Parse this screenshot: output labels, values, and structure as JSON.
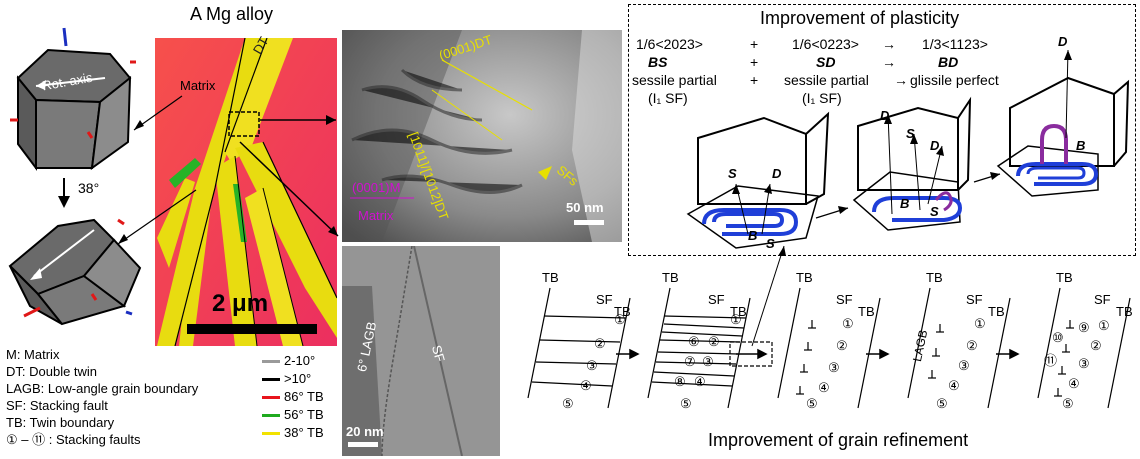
{
  "top_title": "A Mg alloy",
  "left_panel": {
    "rot_axis_label": "Rot. axis",
    "angle_label": "38°",
    "matrix_label": "Matrix"
  },
  "ebsd": {
    "dt_label": "DT",
    "scale_label": "2 μm"
  },
  "tem_top": {
    "plane_dt": "(0001)DT",
    "direction_dt": "[1011]/[1012]DT",
    "sfs_label": "SFs",
    "plane_m": "(0001)M",
    "matrix_label": "Matrix",
    "scale_label": "50 nm"
  },
  "tem_bottom": {
    "lagb_label": "6° LAGB",
    "sf_label": "SF",
    "scale_label": "20 nm"
  },
  "legend_abbrev": [
    "M: Matrix",
    "DT: Double twin",
    "LAGB: Low-angle grain boundary",
    "SF: Stacking fault",
    "TB: Twin boundary",
    "① – ⑪ : Stacking faults"
  ],
  "legend_boundaries": [
    {
      "label": "2-10°",
      "color": "#9a9a9a"
    },
    {
      "label": ">10°",
      "color": "#000000"
    },
    {
      "label": "86° TB",
      "color": "#e8141c"
    },
    {
      "label": "56° TB",
      "color": "#1faa1f"
    },
    {
      "label": "38° TB",
      "color": "#f2e200"
    }
  ],
  "plasticity": {
    "title": "Improvement of plasticity",
    "eq_row1": [
      "1/6<2023>",
      "+",
      "1/6<0223>",
      "→",
      "1/3<1123>"
    ],
    "eq_row2": [
      "BS",
      "+",
      "SD",
      "→",
      "BD"
    ],
    "eq_row3": [
      "sessile partial",
      "+",
      "sessile partial",
      "→",
      "glissile perfect"
    ],
    "eq_row4": [
      "(I₁ SF)",
      "(I₁ SF)"
    ],
    "labels": {
      "S": "S",
      "D": "D",
      "B": "B"
    }
  },
  "refinement": {
    "title": "Improvement of grain refinement",
    "tb": "TB",
    "sf": "SF",
    "lagb": "LAGB",
    "circled": [
      "①",
      "②",
      "③",
      "④",
      "⑤",
      "⑥",
      "⑦",
      "⑧",
      "⑨",
      "⑩",
      "⑪"
    ]
  },
  "colors": {
    "ebsd_bg": "#f23a5a",
    "twin_yellow": "#e8dc10",
    "twin_green": "#27b327",
    "dislocation_blue": "#1f3fd8",
    "dislocation_purple": "#8a2c9e"
  }
}
